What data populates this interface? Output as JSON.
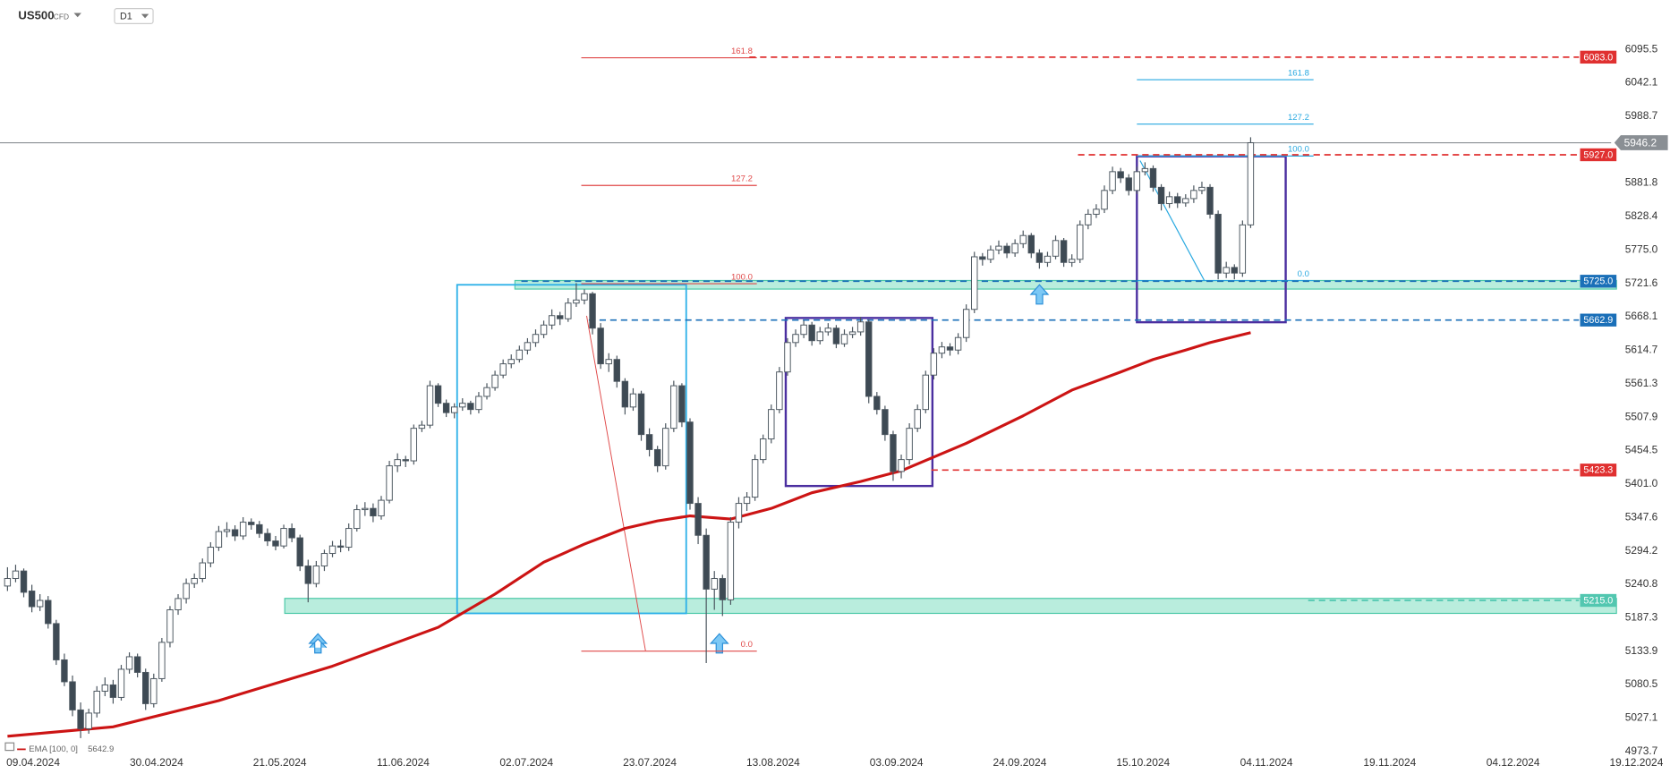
{
  "header": {
    "symbol": "US500",
    "kind": "CFD",
    "timeframe": "D1"
  },
  "chart_data": {
    "type": "candlestick",
    "up_color": "#ffffff",
    "down_color": "#3e4a54",
    "outline_color": "#4a555e",
    "ohlc": [
      [
        5238,
        5268,
        5230,
        5250
      ],
      [
        5250,
        5272,
        5244,
        5262
      ],
      [
        5262,
        5266,
        5220,
        5228
      ],
      [
        5230,
        5240,
        5196,
        5205
      ],
      [
        5205,
        5225,
        5198,
        5215
      ],
      [
        5215,
        5222,
        5170,
        5178
      ],
      [
        5178,
        5184,
        5112,
        5120
      ],
      [
        5120,
        5130,
        5078,
        5085
      ],
      [
        5085,
        5095,
        5030,
        5040
      ],
      [
        5040,
        5052,
        4995,
        5010
      ],
      [
        5010,
        5042,
        5002,
        5035
      ],
      [
        5035,
        5078,
        5028,
        5070
      ],
      [
        5070,
        5092,
        5062,
        5080
      ],
      [
        5080,
        5088,
        5050,
        5060
      ],
      [
        5060,
        5112,
        5055,
        5105
      ],
      [
        5105,
        5132,
        5098,
        5125
      ],
      [
        5125,
        5130,
        5092,
        5100
      ],
      [
        5100,
        5106,
        5040,
        5050
      ],
      [
        5050,
        5098,
        5044,
        5090
      ],
      [
        5090,
        5155,
        5085,
        5148
      ],
      [
        5148,
        5206,
        5140,
        5200
      ],
      [
        5200,
        5225,
        5192,
        5218
      ],
      [
        5218,
        5250,
        5210,
        5242
      ],
      [
        5242,
        5258,
        5235,
        5250
      ],
      [
        5250,
        5282,
        5244,
        5275
      ],
      [
        5275,
        5308,
        5268,
        5300
      ],
      [
        5300,
        5334,
        5294,
        5325
      ],
      [
        5325,
        5340,
        5316,
        5328
      ],
      [
        5328,
        5335,
        5310,
        5318
      ],
      [
        5318,
        5348,
        5312,
        5340
      ],
      [
        5340,
        5346,
        5328,
        5336
      ],
      [
        5336,
        5342,
        5315,
        5322
      ],
      [
        5322,
        5330,
        5302,
        5310
      ],
      [
        5310,
        5318,
        5295,
        5302
      ],
      [
        5302,
        5336,
        5298,
        5330
      ],
      [
        5330,
        5338,
        5308,
        5315
      ],
      [
        5315,
        5320,
        5262,
        5270
      ],
      [
        5270,
        5280,
        5212,
        5242
      ],
      [
        5242,
        5278,
        5236,
        5270
      ],
      [
        5270,
        5296,
        5262,
        5290
      ],
      [
        5290,
        5310,
        5284,
        5302
      ],
      [
        5302,
        5312,
        5292,
        5300
      ],
      [
        5300,
        5338,
        5294,
        5330
      ],
      [
        5330,
        5368,
        5325,
        5360
      ],
      [
        5360,
        5372,
        5350,
        5362
      ],
      [
        5362,
        5370,
        5340,
        5350
      ],
      [
        5350,
        5382,
        5344,
        5375
      ],
      [
        5375,
        5438,
        5370,
        5430
      ],
      [
        5430,
        5450,
        5420,
        5440
      ],
      [
        5440,
        5446,
        5428,
        5438
      ],
      [
        5438,
        5496,
        5432,
        5490
      ],
      [
        5490,
        5502,
        5484,
        5495
      ],
      [
        5495,
        5566,
        5490,
        5558
      ],
      [
        5558,
        5562,
        5524,
        5530
      ],
      [
        5530,
        5536,
        5508,
        5515
      ],
      [
        5515,
        5530,
        5506,
        5524
      ],
      [
        5524,
        5538,
        5518,
        5530
      ],
      [
        5530,
        5534,
        5512,
        5520
      ],
      [
        5520,
        5548,
        5514,
        5541
      ],
      [
        5541,
        5562,
        5536,
        5555
      ],
      [
        5555,
        5582,
        5550,
        5575
      ],
      [
        5575,
        5600,
        5570,
        5593
      ],
      [
        5593,
        5608,
        5586,
        5600
      ],
      [
        5600,
        5622,
        5595,
        5615
      ],
      [
        5615,
        5634,
        5608,
        5627
      ],
      [
        5627,
        5648,
        5620,
        5640
      ],
      [
        5640,
        5662,
        5634,
        5655
      ],
      [
        5655,
        5680,
        5648,
        5670
      ],
      [
        5670,
        5676,
        5655,
        5665
      ],
      [
        5665,
        5698,
        5660,
        5690
      ],
      [
        5690,
        5722,
        5684,
        5695
      ],
      [
        5695,
        5712,
        5688,
        5705
      ],
      [
        5705,
        5708,
        5640,
        5650
      ],
      [
        5650,
        5658,
        5585,
        5593
      ],
      [
        5593,
        5610,
        5580,
        5600
      ],
      [
        5600,
        5606,
        5555,
        5565
      ],
      [
        5565,
        5570,
        5512,
        5524
      ],
      [
        5524,
        5554,
        5518,
        5545
      ],
      [
        5545,
        5550,
        5470,
        5480
      ],
      [
        5480,
        5490,
        5445,
        5456
      ],
      [
        5456,
        5462,
        5420,
        5430
      ],
      [
        5430,
        5498,
        5424,
        5490
      ],
      [
        5490,
        5566,
        5484,
        5558
      ],
      [
        5558,
        5562,
        5492,
        5500
      ],
      [
        5500,
        5506,
        5360,
        5370
      ],
      [
        5370,
        5380,
        5305,
        5319
      ],
      [
        5319,
        5330,
        5115,
        5233
      ],
      [
        5233,
        5262,
        5200,
        5250
      ],
      [
        5250,
        5256,
        5190,
        5216
      ],
      [
        5216,
        5348,
        5208,
        5340
      ],
      [
        5340,
        5380,
        5330,
        5370
      ],
      [
        5370,
        5388,
        5358,
        5380
      ],
      [
        5380,
        5448,
        5374,
        5440
      ],
      [
        5440,
        5480,
        5434,
        5473
      ],
      [
        5473,
        5528,
        5466,
        5520
      ],
      [
        5520,
        5588,
        5514,
        5580
      ],
      [
        5580,
        5634,
        5574,
        5627
      ],
      [
        5627,
        5648,
        5620,
        5640
      ],
      [
        5640,
        5662,
        5634,
        5655
      ],
      [
        5655,
        5660,
        5622,
        5630
      ],
      [
        5630,
        5652,
        5624,
        5644
      ],
      [
        5644,
        5658,
        5638,
        5650
      ],
      [
        5650,
        5655,
        5618,
        5625
      ],
      [
        5625,
        5648,
        5620,
        5640
      ],
      [
        5640,
        5652,
        5634,
        5644
      ],
      [
        5644,
        5668,
        5638,
        5660
      ],
      [
        5660,
        5664,
        5530,
        5541
      ],
      [
        5541,
        5548,
        5512,
        5520
      ],
      [
        5520,
        5526,
        5470,
        5480
      ],
      [
        5480,
        5486,
        5406,
        5421
      ],
      [
        5421,
        5448,
        5410,
        5440
      ],
      [
        5440,
        5498,
        5432,
        5490
      ],
      [
        5490,
        5528,
        5484,
        5520
      ],
      [
        5520,
        5582,
        5514,
        5575
      ],
      [
        5575,
        5618,
        5568,
        5610
      ],
      [
        5610,
        5628,
        5602,
        5620
      ],
      [
        5620,
        5626,
        5606,
        5615
      ],
      [
        5615,
        5642,
        5608,
        5635
      ],
      [
        5635,
        5688,
        5628,
        5680
      ],
      [
        5680,
        5772,
        5674,
        5764
      ],
      [
        5764,
        5770,
        5750,
        5760
      ],
      [
        5760,
        5782,
        5754,
        5775
      ],
      [
        5775,
        5790,
        5768,
        5781
      ],
      [
        5781,
        5786,
        5762,
        5770
      ],
      [
        5770,
        5792,
        5764,
        5785
      ],
      [
        5785,
        5806,
        5778,
        5798
      ],
      [
        5798,
        5802,
        5762,
        5770
      ],
      [
        5770,
        5776,
        5745,
        5755
      ],
      [
        5755,
        5772,
        5748,
        5765
      ],
      [
        5765,
        5798,
        5760,
        5790
      ],
      [
        5790,
        5794,
        5748,
        5755
      ],
      [
        5755,
        5768,
        5748,
        5760
      ],
      [
        5760,
        5822,
        5754,
        5815
      ],
      [
        5815,
        5840,
        5808,
        5832
      ],
      [
        5832,
        5848,
        5826,
        5840
      ],
      [
        5840,
        5878,
        5834,
        5870
      ],
      [
        5870,
        5908,
        5864,
        5900
      ],
      [
        5900,
        5906,
        5882,
        5890
      ],
      [
        5890,
        5896,
        5862,
        5870
      ],
      [
        5870,
        5908,
        5864,
        5900
      ],
      [
        5900,
        5915,
        5894,
        5905
      ],
      [
        5905,
        5910,
        5868,
        5875
      ],
      [
        5875,
        5880,
        5838,
        5849
      ],
      [
        5849,
        5868,
        5842,
        5860
      ],
      [
        5860,
        5866,
        5842,
        5850
      ],
      [
        5850,
        5864,
        5844,
        5857
      ],
      [
        5857,
        5878,
        5850,
        5870
      ],
      [
        5870,
        5884,
        5864,
        5875
      ],
      [
        5875,
        5880,
        5825,
        5832
      ],
      [
        5832,
        5838,
        5728,
        5738
      ],
      [
        5738,
        5756,
        5730,
        5747
      ],
      [
        5747,
        5752,
        5728,
        5738
      ],
      [
        5738,
        5822,
        5732,
        5815
      ],
      [
        5815,
        5955,
        5810,
        5946.2
      ]
    ],
    "ylim": [
      4973.7,
      6095.5
    ],
    "yticks": [
      6095.5,
      6042.1,
      5988.7,
      5881.8,
      5828.4,
      {
        "value": 5775,
        "label": "5775.0"
      },
      5721.6,
      5668.1,
      5614.7,
      5561.3,
      5507.9,
      5454.5,
      {
        "value": 5401,
        "label": "5401.0"
      },
      5347.6,
      5294.2,
      5240.8,
      5187.3,
      5133.9,
      5080.5,
      5027.1,
      4973.7
    ],
    "xlabels": [
      "09.04.2024",
      "30.04.2024",
      "21.05.2024",
      "11.06.2024",
      "02.07.2024",
      "23.07.2024",
      "13.08.2024",
      "03.09.2024",
      "24.09.2024",
      "15.10.2024",
      "04.11.2024",
      "19.11.2024",
      "04.12.2024",
      "19.12.2024"
    ],
    "ema": {
      "name": "EMA [100, 0]",
      "last": {
        "value": 5642.9,
        "label": "5642.9"
      },
      "color": "#cc1414",
      "x": [
        0,
        13,
        26,
        40,
        53,
        60,
        66,
        71,
        76,
        80,
        84,
        89,
        94,
        99,
        105,
        110,
        118,
        125,
        131,
        137,
        141,
        145,
        148,
        153
      ],
      "values": [
        4998,
        5013,
        5055,
        5110,
        5172,
        5225,
        5276,
        5305,
        5330,
        5342,
        5350,
        5345,
        5362,
        5387,
        5405,
        5422,
        5466,
        5510,
        5551,
        5580,
        5600,
        5615,
        5627,
        5642.9
      ]
    },
    "levels": [
      {
        "value": 6083,
        "label": "6083.0",
        "color": "#e03030",
        "style": "dashed"
      },
      {
        "value": 5946.2,
        "label": "5946.2",
        "color": "#8a8f94",
        "style": "solid"
      },
      {
        "value": 5927,
        "label": "5927.0",
        "color": "#e03030",
        "style": "dashed"
      },
      {
        "value": 5725,
        "label": "5725.0",
        "color": "#1a6fb8",
        "style": "dashed"
      },
      {
        "value": 5662.9,
        "label": "5662.9",
        "color": "#1a6fb8",
        "style": "dashed"
      },
      {
        "value": 5423.3,
        "label": "5423.3",
        "color": "#e03030",
        "style": "dashed"
      },
      {
        "value": 5215,
        "label": "5215.0",
        "color": "#52c7b0",
        "style": "dashed"
      }
    ],
    "fib": [
      {
        "color": "#e04848",
        "levels": [
          {
            "value": 6082,
            "label": "161.8"
          },
          {
            "value": 5878,
            "label": "127.2"
          },
          {
            "value": 5721,
            "label": "100.0"
          },
          {
            "value": 5134,
            "label": "0.0"
          }
        ]
      },
      {
        "color": "#27a8e0",
        "levels": [
          {
            "value": 6047,
            "label": "161.8"
          },
          {
            "value": 5976,
            "label": "127.2"
          },
          {
            "value": 5925,
            "label": "100.0"
          },
          {
            "value": 5726,
            "label": "0.0"
          }
        ]
      }
    ]
  }
}
